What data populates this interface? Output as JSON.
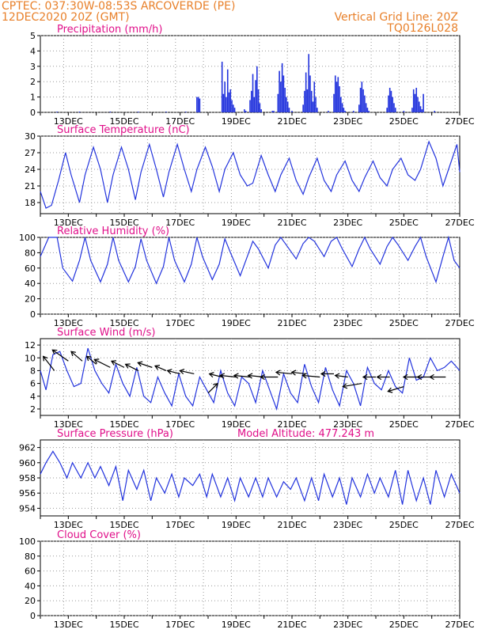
{
  "header": {
    "line1_left": "CPTEC:   037:30W-08:53S   ARCOVERDE (PE)",
    "line2_left": "12DEC2020 20Z (GMT)",
    "line1_right": "Vertical Grid Line: 20Z",
    "line2_right": "TQ0126L028",
    "altitude_label": "Model Altitude: 477.243 m"
  },
  "colors": {
    "header": "#e8802a",
    "panel_title": "#e0108a",
    "series": "#2233dd",
    "cloud": "#aaaaaa",
    "arrow": "#000000",
    "grid": "#999999"
  },
  "chart_data": [
    {
      "type": "bar",
      "title": "Precipitation (mm/h)",
      "ylim": [
        0,
        5
      ],
      "yticks": [
        0,
        1,
        2,
        3,
        4,
        5
      ],
      "x_range_days": [
        12.0,
        27.0
      ],
      "xtick_labels": [
        "13DEC",
        "15DEC",
        "17DEC",
        "19DEC",
        "21DEC",
        "23DEC",
        "25DEC",
        "27DEC"
      ],
      "x": [
        12.6,
        13.4,
        14.5,
        15.5,
        16.5,
        17.2,
        17.6,
        17.65,
        17.7,
        18.5,
        18.55,
        18.6,
        18.65,
        18.7,
        18.75,
        18.8,
        18.85,
        18.9,
        18.95,
        19.3,
        19.35,
        19.5,
        19.55,
        19.6,
        19.65,
        19.7,
        19.75,
        19.8,
        19.85,
        19.9,
        20.3,
        20.35,
        20.5,
        20.55,
        20.6,
        20.65,
        20.7,
        20.75,
        20.8,
        20.85,
        20.9,
        21.0,
        21.4,
        21.45,
        21.5,
        21.55,
        21.6,
        21.65,
        21.7,
        21.75,
        21.8,
        21.85,
        21.9,
        22.3,
        22.5,
        22.55,
        22.6,
        22.65,
        22.7,
        22.75,
        22.8,
        22.85,
        22.9,
        23.2,
        23.4,
        23.45,
        23.5,
        23.55,
        23.6,
        23.65,
        23.7,
        23.75,
        24.4,
        24.45,
        24.5,
        24.55,
        24.6,
        24.65,
        24.7,
        25.0,
        25.3,
        25.35,
        25.4,
        25.45,
        25.5,
        25.55,
        25.6,
        25.65,
        25.7,
        26.1
      ],
      "values": [
        0.05,
        0.05,
        0.05,
        0.05,
        0.05,
        0.05,
        1.0,
        1.0,
        0.9,
        3.3,
        1.2,
        2.0,
        1.0,
        2.8,
        1.3,
        1.5,
        0.8,
        0.5,
        0.3,
        0.2,
        0.1,
        0.8,
        1.4,
        2.5,
        1.0,
        2.1,
        3.0,
        1.5,
        0.6,
        0.2,
        0.1,
        0.1,
        1.2,
        2.7,
        2.0,
        3.2,
        2.4,
        1.6,
        1.0,
        0.7,
        0.3,
        0.1,
        0.5,
        1.4,
        2.6,
        1.5,
        3.8,
        2.4,
        1.4,
        0.7,
        2.0,
        1.0,
        0.3,
        0.1,
        1.2,
        2.4,
        2.0,
        2.3,
        1.7,
        1.0,
        0.6,
        0.3,
        0.1,
        0.1,
        0.5,
        1.6,
        2.0,
        1.5,
        1.1,
        0.6,
        0.3,
        0.1,
        0.3,
        1.1,
        1.6,
        1.4,
        1.0,
        0.6,
        0.3,
        0.1,
        0.3,
        1.5,
        1.2,
        1.6,
        1.0,
        0.7,
        0.4,
        0.2,
        1.2,
        0.1
      ]
    },
    {
      "type": "line",
      "title": "Surface Temperature (nC)",
      "ylim": [
        16,
        30
      ],
      "yticks": [
        18,
        21,
        24,
        27,
        30
      ],
      "x_range_days": [
        12.0,
        27.0
      ],
      "xtick_labels": [
        "13DEC",
        "15DEC",
        "17DEC",
        "19DEC",
        "21DEC",
        "23DEC",
        "25DEC",
        "27DEC"
      ],
      "x": [
        12.0,
        12.2,
        12.4,
        12.65,
        12.9,
        13.1,
        13.4,
        13.6,
        13.9,
        14.15,
        14.4,
        14.6,
        14.9,
        15.15,
        15.4,
        15.6,
        15.9,
        16.15,
        16.4,
        16.6,
        16.9,
        17.15,
        17.4,
        17.6,
        17.9,
        18.15,
        18.4,
        18.6,
        18.9,
        19.15,
        19.4,
        19.6,
        19.9,
        20.15,
        20.4,
        20.6,
        20.9,
        21.15,
        21.4,
        21.6,
        21.9,
        22.15,
        22.4,
        22.6,
        22.9,
        23.15,
        23.4,
        23.6,
        23.9,
        24.15,
        24.4,
        24.6,
        24.9,
        25.15,
        25.4,
        25.6,
        25.9,
        26.15,
        26.4,
        26.6,
        26.9,
        27.0
      ],
      "values": [
        20.0,
        17.0,
        17.5,
        22.0,
        27.0,
        23.0,
        18.0,
        23.0,
        28.0,
        24.0,
        18.0,
        23.0,
        28.0,
        24.0,
        18.5,
        23.5,
        28.5,
        24.0,
        19.0,
        23.5,
        28.5,
        24.0,
        20.0,
        24.0,
        28.0,
        24.5,
        20.0,
        24.0,
        27.0,
        23.0,
        21.0,
        21.5,
        26.5,
        23.0,
        20.0,
        23.0,
        26.0,
        22.0,
        19.5,
        22.5,
        26.0,
        22.0,
        20.0,
        23.0,
        25.5,
        22.0,
        20.0,
        22.5,
        25.5,
        22.5,
        21.0,
        24.0,
        26.0,
        23.0,
        22.0,
        24.0,
        29.0,
        26.0,
        21.0,
        24.0,
        28.5,
        23.5
      ]
    },
    {
      "type": "line",
      "title": "Relative Humidity (%)",
      "ylim": [
        0,
        100
      ],
      "yticks": [
        0,
        20,
        40,
        60,
        80,
        100
      ],
      "x_range_days": [
        12.0,
        27.0
      ],
      "xtick_labels": [
        "13DEC",
        "15DEC",
        "17DEC",
        "19DEC",
        "21DEC",
        "23DEC",
        "25DEC",
        "27DEC"
      ],
      "x": [
        12.0,
        12.3,
        12.6,
        12.8,
        13.15,
        13.4,
        13.6,
        13.8,
        14.15,
        14.4,
        14.6,
        14.8,
        15.15,
        15.4,
        15.6,
        15.8,
        16.15,
        16.4,
        16.6,
        16.8,
        17.15,
        17.4,
        17.6,
        17.8,
        18.15,
        18.4,
        18.6,
        18.8,
        19.15,
        19.4,
        19.6,
        19.8,
        20.15,
        20.4,
        20.6,
        20.8,
        21.15,
        21.4,
        21.6,
        21.8,
        22.15,
        22.4,
        22.6,
        22.8,
        23.15,
        23.4,
        23.6,
        23.8,
        24.15,
        24.4,
        24.6,
        24.8,
        25.15,
        25.4,
        25.6,
        25.8,
        26.15,
        26.4,
        26.6,
        26.8,
        27.0
      ],
      "values": [
        75,
        100,
        100,
        60,
        43,
        70,
        100,
        70,
        42,
        65,
        100,
        70,
        42,
        62,
        98,
        70,
        40,
        62,
        100,
        70,
        42,
        65,
        100,
        75,
        45,
        65,
        98,
        80,
        50,
        75,
        95,
        85,
        60,
        90,
        100,
        90,
        72,
        92,
        100,
        95,
        75,
        95,
        100,
        85,
        62,
        85,
        100,
        85,
        65,
        88,
        100,
        90,
        70,
        88,
        100,
        75,
        42,
        75,
        100,
        70,
        60
      ]
    },
    {
      "type": "line",
      "title": "Surface Wind (m/s)",
      "ylim": [
        1,
        13
      ],
      "yticks": [
        2,
        4,
        6,
        8,
        10,
        12
      ],
      "x_range_days": [
        12.0,
        27.0
      ],
      "xtick_labels": [
        "13DEC",
        "15DEC",
        "17DEC",
        "19DEC",
        "21DEC",
        "23DEC",
        "25DEC",
        "27DEC"
      ],
      "x": [
        12.0,
        12.2,
        12.45,
        12.7,
        12.95,
        13.2,
        13.45,
        13.7,
        13.95,
        14.2,
        14.45,
        14.7,
        14.95,
        15.2,
        15.45,
        15.7,
        15.95,
        16.2,
        16.45,
        16.7,
        16.95,
        17.2,
        17.45,
        17.7,
        17.95,
        18.2,
        18.45,
        18.7,
        18.95,
        19.2,
        19.45,
        19.7,
        19.95,
        20.2,
        20.45,
        20.7,
        20.95,
        21.2,
        21.45,
        21.7,
        21.95,
        22.2,
        22.45,
        22.7,
        22.95,
        23.2,
        23.45,
        23.7,
        23.95,
        24.2,
        24.45,
        24.7,
        24.95,
        25.2,
        25.45,
        25.7,
        25.95,
        26.2,
        26.45,
        26.7,
        27.0
      ],
      "values": [
        8.0,
        5.0,
        10.5,
        11.0,
        8.0,
        5.5,
        6.0,
        11.5,
        8.0,
        6.0,
        4.5,
        9.0,
        6.0,
        4.0,
        8.5,
        4.0,
        3.0,
        7.0,
        4.5,
        2.5,
        7.5,
        4.0,
        2.5,
        7.0,
        5.0,
        3.0,
        8.0,
        4.5,
        2.5,
        7.0,
        6.0,
        3.0,
        8.0,
        5.0,
        2.0,
        7.5,
        4.5,
        3.0,
        9.0,
        5.5,
        3.0,
        8.5,
        5.0,
        2.5,
        8.0,
        6.0,
        2.5,
        8.5,
        6.0,
        5.0,
        8.0,
        5.5,
        4.5,
        10.0,
        6.5,
        7.0,
        10.0,
        8.0,
        8.5,
        9.5,
        8.0
      ],
      "arrows_x": [
        12.5,
        13.0,
        13.5,
        14.0,
        14.5,
        15.0,
        15.5,
        16.0,
        16.5,
        17.0,
        17.5,
        18.0,
        18.5,
        19.0,
        19.5,
        20.0,
        20.5,
        21.0,
        21.5,
        22.0,
        22.5,
        23.0,
        23.5,
        24.0,
        24.5,
        25.0,
        25.5,
        26.0,
        26.5
      ],
      "arrows_y": [
        8.0,
        9.5,
        9.5,
        9.0,
        8.5,
        8.5,
        8.0,
        8.5,
        8.0,
        7.5,
        7.5,
        4.5,
        7.0,
        7.0,
        7.0,
        7.0,
        7.0,
        7.5,
        7.5,
        7.0,
        7.5,
        7.0,
        6.0,
        7.0,
        7.0,
        5.5,
        7.0,
        7.0,
        7.0
      ],
      "arrows_to_dx": [
        -14,
        -20,
        -14,
        -12,
        -20,
        -16,
        -16,
        -18,
        -14,
        -16,
        -18,
        12,
        -16,
        -20,
        -20,
        -20,
        -22,
        -20,
        -18,
        -22,
        -16,
        -16,
        -24,
        -16,
        -16,
        -20,
        -18,
        -18,
        -20
      ],
      "arrows_to_dy": [
        -18,
        -14,
        -12,
        -10,
        -10,
        -8,
        -8,
        -6,
        -6,
        -4,
        -4,
        -12,
        -4,
        -2,
        -2,
        -2,
        0,
        -2,
        -2,
        -2,
        0,
        -2,
        4,
        0,
        0,
        6,
        0,
        0,
        0
      ]
    },
    {
      "type": "line",
      "title": "Surface Pressure (hPa)",
      "ylim": [
        953,
        963
      ],
      "yticks": [
        954,
        956,
        958,
        960,
        962
      ],
      "x_range_days": [
        12.0,
        27.0
      ],
      "xtick_labels": [
        "13DEC",
        "15DEC",
        "17DEC",
        "19DEC",
        "21DEC",
        "23DEC",
        "25DEC",
        "27DEC"
      ],
      "x": [
        12.0,
        12.2,
        12.45,
        12.7,
        12.95,
        13.15,
        13.45,
        13.7,
        13.95,
        14.15,
        14.45,
        14.7,
        14.95,
        15.15,
        15.45,
        15.7,
        15.95,
        16.15,
        16.45,
        16.7,
        16.95,
        17.15,
        17.45,
        17.7,
        17.95,
        18.15,
        18.45,
        18.7,
        18.95,
        19.15,
        19.45,
        19.7,
        19.95,
        20.15,
        20.45,
        20.7,
        20.95,
        21.15,
        21.45,
        21.7,
        21.95,
        22.15,
        22.45,
        22.7,
        22.95,
        23.15,
        23.45,
        23.7,
        23.95,
        24.15,
        24.45,
        24.7,
        24.95,
        25.15,
        25.45,
        25.7,
        25.95,
        26.15,
        26.45,
        26.7,
        27.0
      ],
      "values": [
        958.5,
        960.0,
        961.5,
        960.0,
        958.0,
        960.0,
        958.0,
        960.0,
        958.0,
        959.5,
        957.0,
        959.5,
        955.0,
        959.0,
        956.5,
        959.0,
        955.0,
        958.0,
        956.0,
        958.5,
        955.5,
        958.0,
        957.0,
        958.5,
        955.5,
        958.5,
        955.5,
        958.0,
        955.0,
        958.0,
        955.5,
        958.0,
        955.5,
        958.0,
        955.5,
        957.5,
        956.5,
        958.0,
        955.0,
        958.0,
        955.0,
        958.5,
        955.5,
        958.0,
        954.5,
        958.0,
        955.5,
        958.5,
        956.0,
        958.0,
        955.5,
        959.0,
        954.5,
        959.0,
        955.0,
        958.0,
        954.5,
        959.0,
        955.5,
        958.5,
        956.0
      ]
    },
    {
      "type": "area",
      "title": "Cloud Cover (%)",
      "ylim": [
        0,
        100
      ],
      "yticks": [
        0,
        20,
        40,
        60,
        80,
        100
      ],
      "x_range_days": [
        12.0,
        27.0
      ],
      "xtick_labels": [
        "13DEC",
        "15DEC",
        "17DEC",
        "19DEC",
        "21DEC",
        "23DEC",
        "25DEC",
        "27DEC"
      ],
      "x": [
        12.0,
        12.1,
        12.2,
        12.3,
        12.4,
        12.5,
        12.6,
        12.7,
        12.8,
        12.9,
        13.0,
        13.2,
        13.4,
        13.6,
        13.8,
        14.0,
        14.2,
        14.4,
        14.6,
        14.8,
        15.0,
        15.2,
        15.4,
        15.6,
        15.8,
        16.0,
        16.2,
        16.4,
        16.6,
        16.8,
        17.0,
        17.2,
        17.4,
        17.6,
        17.8,
        18.0,
        18.2,
        18.4,
        18.6,
        18.8,
        19.0,
        19.2,
        19.4,
        19.6,
        19.8,
        20.0,
        20.2,
        20.4,
        20.6,
        20.8,
        21.0,
        21.2,
        21.4,
        21.6,
        21.8,
        22.0,
        22.2,
        22.4,
        22.6,
        22.8,
        23.0,
        23.2,
        23.4,
        23.6,
        23.8,
        24.0,
        24.2,
        24.4,
        24.6,
        24.8,
        25.0,
        25.2,
        25.4,
        25.6,
        25.8,
        26.0,
        26.2,
        26.4,
        26.6,
        26.8,
        26.95
      ],
      "values": [
        0,
        0,
        0,
        0,
        0,
        0,
        0,
        0,
        0,
        0,
        0,
        0,
        0,
        0,
        0,
        0,
        0,
        0,
        0,
        0,
        0,
        0,
        0,
        0,
        0,
        0,
        0,
        0,
        0,
        0,
        0,
        0,
        0,
        0,
        0,
        0,
        0,
        0,
        0,
        0,
        0,
        0,
        0,
        0,
        0,
        0,
        0,
        0,
        0,
        0,
        0,
        0,
        0,
        0,
        0,
        0,
        0,
        0,
        0,
        0,
        0,
        0,
        0,
        0,
        0,
        0,
        0,
        0,
        0,
        0,
        0,
        0,
        0,
        0,
        0,
        0,
        0,
        0,
        0,
        0,
        0
      ]
    }
  ]
}
